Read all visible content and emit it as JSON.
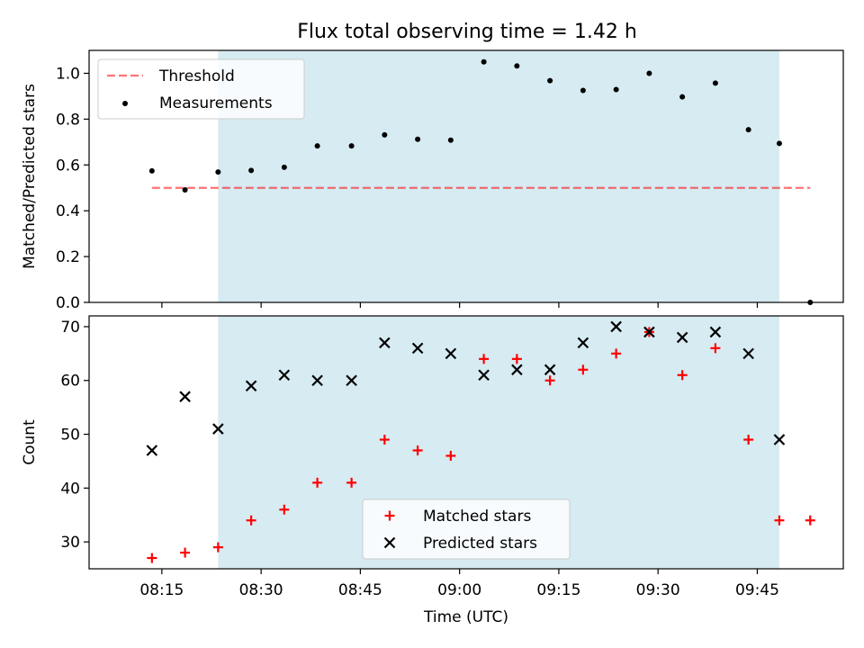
{
  "title": "Flux total observing time = 1.42 h",
  "colors": {
    "highlight": "#add8e6",
    "threshold": "#ff0000",
    "measurement": "#000000",
    "matched": "#ff0000",
    "predicted": "#000000"
  },
  "chart_data": [
    {
      "type": "scatter",
      "panel": "ratio",
      "xlabel": "",
      "ylabel": "Matched/Predicted stars",
      "ylim": [
        0.0,
        1.1
      ],
      "yticks": [
        "0.0",
        "0.2",
        "0.4",
        "0.6",
        "0.8",
        "1.0"
      ],
      "xlim": [
        "08:04",
        "09:58"
      ],
      "highlight_span": [
        "08:23:30",
        "09:48:20"
      ],
      "legend": {
        "position": "upper-left",
        "entries": [
          "Threshold",
          "Measurements"
        ]
      },
      "threshold": {
        "name": "Threshold",
        "value": 0.5,
        "x_start": "08:13:30",
        "x_end": "09:53:00"
      },
      "series": [
        {
          "name": "Measurements",
          "x": [
            "08:13:30",
            "08:18:30",
            "08:23:30",
            "08:28:30",
            "08:33:30",
            "08:38:30",
            "08:43:40",
            "08:48:40",
            "08:53:40",
            "08:58:40",
            "09:03:40",
            "09:08:40",
            "09:13:40",
            "09:18:40",
            "09:23:40",
            "09:28:40",
            "09:33:40",
            "09:38:40",
            "09:43:40",
            "09:48:20",
            "09:53:00"
          ],
          "values": [
            0.574,
            0.491,
            0.569,
            0.576,
            0.59,
            0.683,
            0.683,
            0.731,
            0.712,
            0.708,
            1.05,
            1.032,
            0.968,
            0.925,
            0.929,
            1.0,
            0.897,
            0.957,
            0.754,
            0.694,
            0.0
          ]
        }
      ]
    },
    {
      "type": "scatter",
      "panel": "counts",
      "xlabel": "Time (UTC)",
      "ylabel": "Count",
      "ylim": [
        25,
        72
      ],
      "yticks": [
        "30",
        "40",
        "50",
        "60",
        "70"
      ],
      "xlim": [
        "08:04",
        "09:58"
      ],
      "xticks": [
        "08:15",
        "08:30",
        "08:45",
        "09:00",
        "09:15",
        "09:30",
        "09:45"
      ],
      "highlight_span": [
        "08:23:30",
        "09:48:20"
      ],
      "legend": {
        "position": "lower-center",
        "entries": [
          "Matched stars",
          "Predicted stars"
        ]
      },
      "series": [
        {
          "name": "Matched stars",
          "marker": "plus",
          "x": [
            "08:13:30",
            "08:18:30",
            "08:23:30",
            "08:28:30",
            "08:33:30",
            "08:38:30",
            "08:43:40",
            "08:48:40",
            "08:53:40",
            "08:58:40",
            "09:03:40",
            "09:08:40",
            "09:13:40",
            "09:18:40",
            "09:23:40",
            "09:28:40",
            "09:33:40",
            "09:38:40",
            "09:43:40",
            "09:48:20",
            "09:53:00"
          ],
          "values": [
            27,
            28,
            29,
            34,
            36,
            41,
            41,
            49,
            47,
            46,
            64,
            64,
            60,
            62,
            65,
            69,
            61,
            66,
            49,
            34,
            34
          ]
        },
        {
          "name": "Predicted stars",
          "marker": "x",
          "x": [
            "08:13:30",
            "08:18:30",
            "08:23:30",
            "08:28:30",
            "08:33:30",
            "08:38:30",
            "08:43:40",
            "08:48:40",
            "08:53:40",
            "08:58:40",
            "09:03:40",
            "09:08:40",
            "09:13:40",
            "09:18:40",
            "09:23:40",
            "09:28:40",
            "09:33:40",
            "09:38:40",
            "09:43:40",
            "09:48:20"
          ],
          "values": [
            47,
            57,
            51,
            59,
            61,
            60,
            60,
            67,
            66,
            65,
            61,
            62,
            62,
            67,
            70,
            69,
            68,
            69,
            65,
            49
          ]
        }
      ]
    }
  ]
}
